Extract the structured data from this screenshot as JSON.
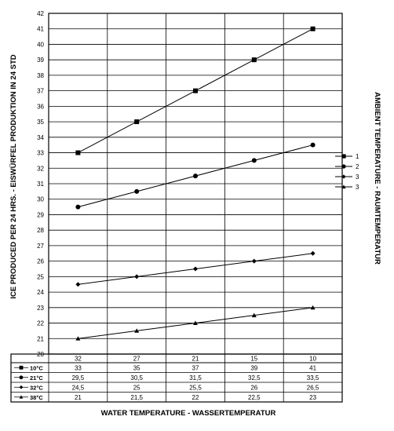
{
  "chart_data": {
    "type": "line",
    "x": [
      "32",
      "27",
      "21",
      "15",
      "10"
    ],
    "ylim": [
      20,
      42
    ],
    "yticks": [
      20,
      21,
      22,
      23,
      24,
      25,
      26,
      27,
      28,
      29,
      30,
      31,
      32,
      33,
      34,
      35,
      36,
      37,
      38,
      39,
      40,
      41,
      42
    ],
    "grid": true,
    "ylabel": "ICE PRODUCED PER 24 HRS. - EISWÜRFEL PRODUKTION IN 24 STD",
    "xlabel": "WATER TEMPERATURE - WASSERTEMPERATUR",
    "legend_title": "AMBIENT TEMPERATURE - RAUMTEMPERATUR",
    "legend_placement": "right",
    "series": [
      {
        "name": "1",
        "marker": "square",
        "values": [
          33,
          35,
          37,
          39,
          41
        ]
      },
      {
        "name": "2",
        "marker": "circle",
        "values": [
          29.5,
          30.5,
          31.5,
          32.5,
          33.5
        ]
      },
      {
        "name": "3",
        "marker": "diamond",
        "values": [
          24.5,
          25,
          25.5,
          26,
          26.5
        ]
      },
      {
        "name": "3",
        "marker": "triangle",
        "values": [
          21,
          21.5,
          22,
          22.5,
          23
        ]
      }
    ],
    "table": {
      "rows": [
        {
          "label": "10°C",
          "marker": "square",
          "cells": [
            "33",
            "35",
            "37",
            "39",
            "41"
          ]
        },
        {
          "label": "21°C",
          "marker": "circle",
          "cells": [
            "29,5",
            "30,5",
            "31,5",
            "32,5",
            "33,5"
          ]
        },
        {
          "label": "32°C",
          "marker": "diamond",
          "cells": [
            "24,5",
            "25",
            "25,5",
            "26",
            "26,5"
          ]
        },
        {
          "label": "38°C",
          "marker": "triangle",
          "cells": [
            "21",
            "21,5",
            "22",
            "22,5",
            "23"
          ]
        }
      ]
    }
  }
}
